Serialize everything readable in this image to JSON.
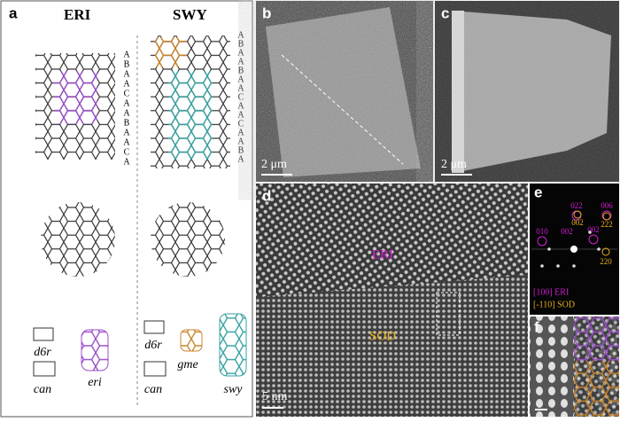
{
  "panel_a": {
    "label": "a",
    "eri": {
      "title": "ERI",
      "stacking": [
        "A",
        "B",
        "A",
        "A",
        "C",
        "A",
        "A",
        "B",
        "A",
        "A",
        "C",
        "A"
      ],
      "units": [
        "d6r",
        "can",
        "eri"
      ]
    },
    "swy": {
      "title": "SWY",
      "stacking": [
        "A",
        "B",
        "A",
        "A",
        "B",
        "A",
        "A",
        "C",
        "A",
        "A",
        "C",
        "A",
        "A",
        "B",
        "A"
      ],
      "units": [
        "d6r",
        "gme",
        "can",
        "swy"
      ]
    }
  },
  "panel_b": {
    "label": "b",
    "scale": "2 μm"
  },
  "panel_c": {
    "label": "c",
    "scale": "2 μm"
  },
  "panel_d": {
    "label": "d",
    "scale": "5 nm",
    "phase_top": "ERI",
    "phase_bottom": "SOD"
  },
  "panel_e": {
    "label": "e",
    "spots_eri": [
      "022",
      "006",
      "010",
      "002",
      "002"
    ],
    "spots_sod": [
      "002",
      "222",
      "220"
    ],
    "legend": [
      "[100] ERI",
      "[-110] SOD"
    ]
  },
  "panel_f": {
    "label": "f"
  }
}
